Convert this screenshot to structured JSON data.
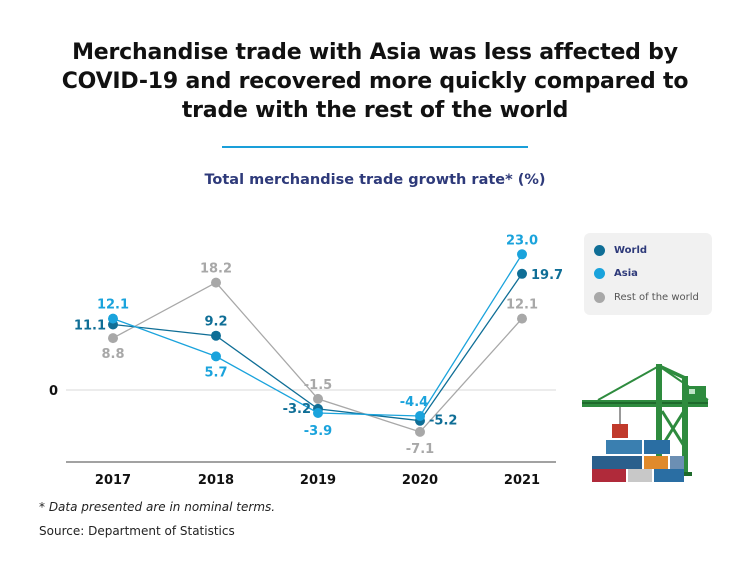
{
  "header": {
    "title_lines": [
      "Merchandise trade with Asia was less affected by",
      "COVID-19 and recovered more quickly compared to",
      "trade with the rest of the world"
    ],
    "subtitle": "Total merchandise trade growth rate* (%)"
  },
  "colors": {
    "world": "#0f6e96",
    "asia": "#1aa3dc",
    "rest": "#a8a8a8",
    "divider": "#1a9fd9"
  },
  "chart_data": {
    "type": "line",
    "title": "Total merchandise trade growth rate* (%)",
    "categories": [
      "2017",
      "2018",
      "2019",
      "2020",
      "2021"
    ],
    "series": [
      {
        "name": "World",
        "values": [
          11.1,
          9.2,
          -3.2,
          -5.2,
          19.7
        ]
      },
      {
        "name": "Asia",
        "values": [
          12.1,
          5.7,
          -3.9,
          -4.4,
          23.0
        ]
      },
      {
        "name": "Rest of the world",
        "values": [
          8.8,
          18.2,
          -1.5,
          -7.1,
          12.1
        ]
      }
    ],
    "labels": {
      "World": [
        "11.1",
        "9.2",
        "-3.2",
        "-5.2",
        "19.7"
      ],
      "Asia": [
        "12.1",
        "5.7",
        "-3.9",
        "-4.4",
        "23.0"
      ],
      "Rest of the world": [
        "8.8",
        "18.2",
        "-1.5",
        "-7.1",
        "12.1"
      ]
    },
    "y_ticks": [
      "0"
    ],
    "ylim": [
      -10,
      25
    ],
    "grid": "zero-line only",
    "legend_placement": "right"
  },
  "legend": {
    "items": [
      {
        "label": "World"
      },
      {
        "label": "Asia"
      },
      {
        "label": "Rest of the world"
      }
    ]
  },
  "footer": {
    "footnote": "* Data presented are in nominal terms.",
    "source": "Source: Department of Statistics"
  },
  "illustration": {
    "icon": "port-crane-with-containers-icon"
  }
}
